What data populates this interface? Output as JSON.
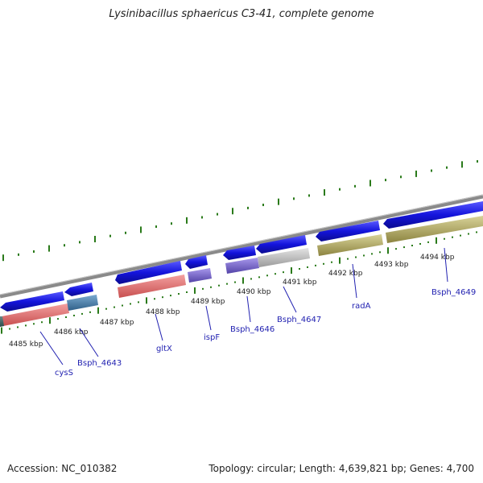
{
  "title": "Lysinibacillus sphaericus C3-41, complete genome",
  "footer": {
    "accession": "Accession: NC_010382",
    "stats": "Topology: circular; Length: 4,639,821 bp; Genes: 4,700"
  },
  "colors": {
    "gene_blue": "#1414dc",
    "backbone": "#8a8a8a",
    "tick_green": "#2a7a1a",
    "label_blue": "#1f1fb0",
    "pink": "#e87878",
    "steel": "#4a7fa8",
    "purple": "#7a6acc",
    "silver": "#c4c4c4",
    "olive": "#bcb46a"
  },
  "scale": {
    "kbp_labels": [
      "4485 kbp",
      "4486 kbp",
      "4487 kbp",
      "4488 kbp",
      "4489 kbp",
      "4490 kbp",
      "4491 kbp",
      "4492 kbp",
      "4493 kbp",
      "4494 kbp"
    ]
  },
  "genes": [
    {
      "name": "cysS",
      "color": "steel-gray",
      "cog": "#3f6a6a"
    },
    {
      "name": "Bsph_4643",
      "color": "steel"
    },
    {
      "name": "gltX",
      "color": "pink"
    },
    {
      "name": "ispF",
      "color": "purple"
    },
    {
      "name": "Bsph_4646",
      "color": "purple"
    },
    {
      "name": "Bsph_4647",
      "color": "silver"
    },
    {
      "name": "radA",
      "color": "olive"
    },
    {
      "name": "Bsph_4649",
      "color": "olive"
    }
  ]
}
